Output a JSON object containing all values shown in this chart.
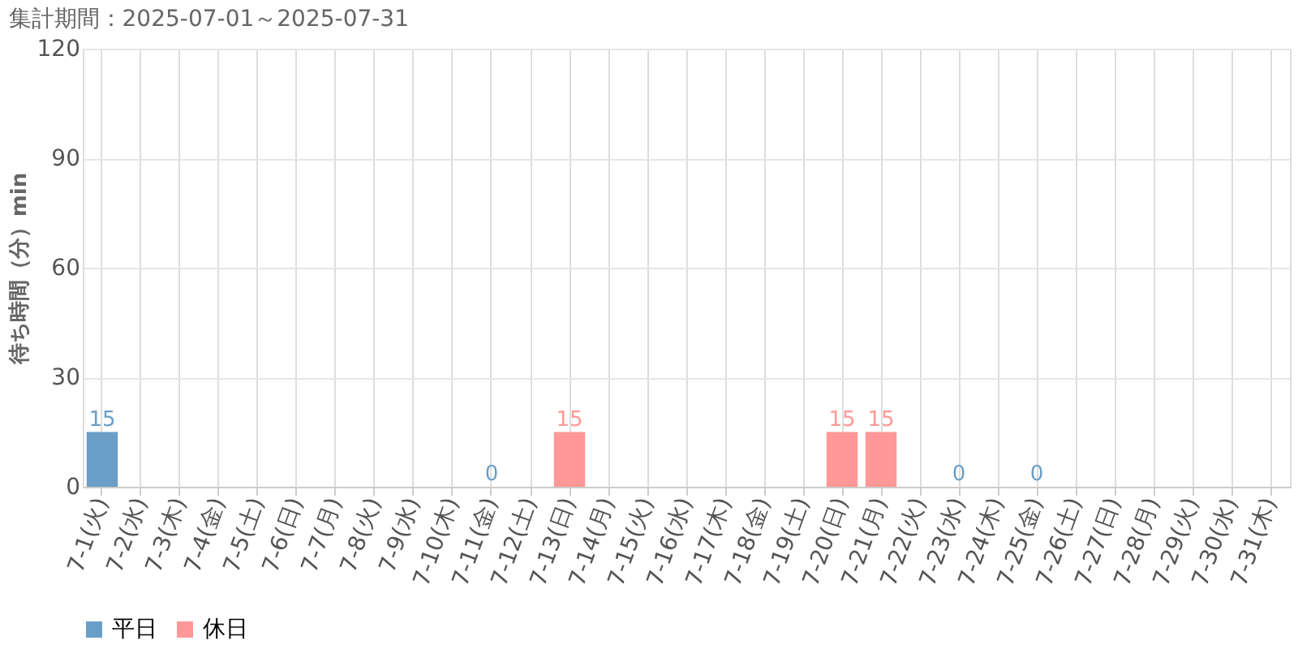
{
  "chart_data": {
    "type": "bar",
    "title": "集計期間：2025-07-01～2025-07-31",
    "ylabel": "待ち時間（分）min",
    "categories": [
      "7-1(火)",
      "7-2(水)",
      "7-3(木)",
      "7-4(金)",
      "7-5(土)",
      "7-6(日)",
      "7-7(月)",
      "7-8(火)",
      "7-9(水)",
      "7-10(木)",
      "7-11(金)",
      "7-12(土)",
      "7-13(日)",
      "7-14(月)",
      "7-15(火)",
      "7-16(水)",
      "7-17(木)",
      "7-18(金)",
      "7-19(土)",
      "7-20(日)",
      "7-21(月)",
      "7-22(火)",
      "7-23(水)",
      "7-24(木)",
      "7-25(金)",
      "7-26(土)",
      "7-27(日)",
      "7-28(月)",
      "7-29(火)",
      "7-30(水)",
      "7-31(木)"
    ],
    "series": [
      {
        "name": "平日",
        "color": "#6a9ec7",
        "values": [
          15,
          null,
          null,
          null,
          null,
          null,
          null,
          null,
          null,
          null,
          0,
          null,
          null,
          null,
          null,
          null,
          null,
          null,
          null,
          null,
          null,
          null,
          0,
          null,
          0,
          null,
          null,
          null,
          null,
          null,
          null
        ]
      },
      {
        "name": "休日",
        "color": "#ff9896",
        "values": [
          null,
          null,
          null,
          null,
          null,
          null,
          null,
          null,
          null,
          null,
          null,
          null,
          15,
          null,
          null,
          null,
          null,
          null,
          null,
          15,
          15,
          null,
          null,
          null,
          null,
          null,
          null,
          null,
          null,
          null,
          null
        ]
      }
    ],
    "ylim": [
      0,
      120
    ],
    "yticks": [
      0,
      30,
      60,
      90,
      120
    ],
    "grid": true,
    "legend": "bottom left",
    "data_labels": true
  }
}
